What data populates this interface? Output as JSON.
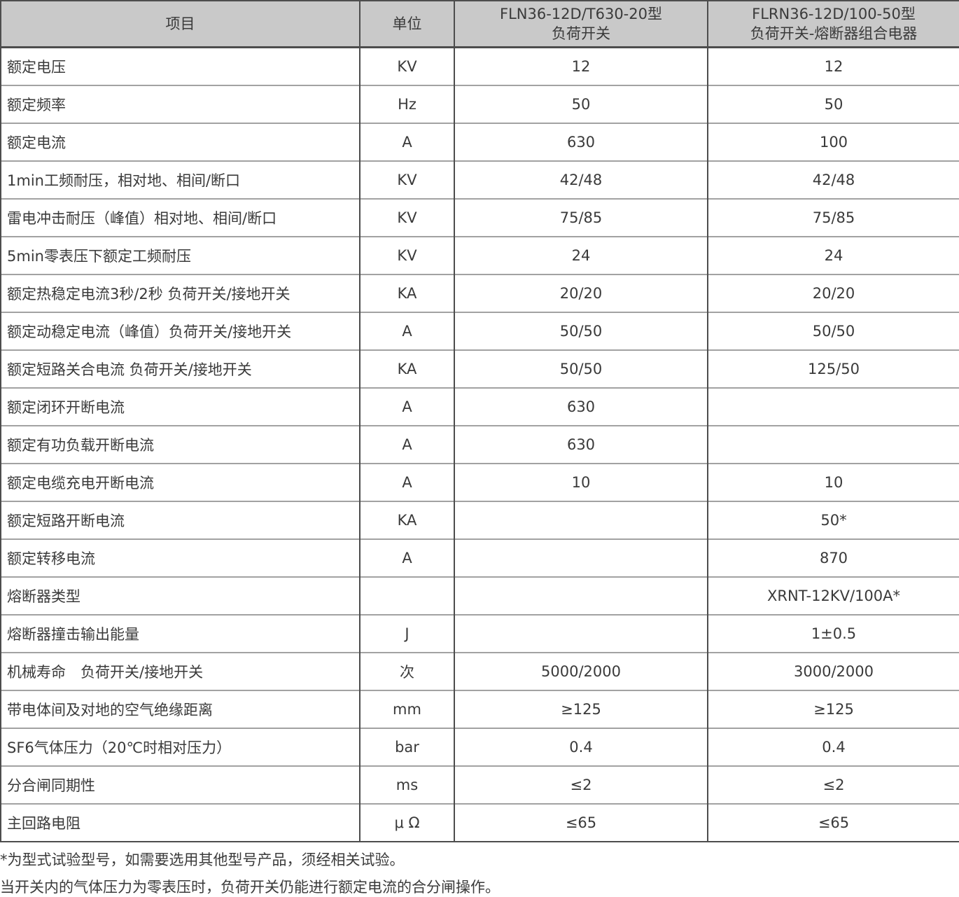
{
  "table": {
    "header": {
      "col_item": "项目",
      "col_unit": "单位",
      "col_a_line1": "FLN36-12D/T630-20型",
      "col_a_line2": "负荷开关",
      "col_b_line1": "FLRN36-12D/100-50型",
      "col_b_line2": "负荷开关-熔断器组合电器"
    },
    "rows": [
      {
        "item": "额定电压",
        "unit": "KV",
        "a": "12",
        "b": "12"
      },
      {
        "item": "额定频率",
        "unit": "Hz",
        "a": "50",
        "b": "50"
      },
      {
        "item": "额定电流",
        "unit": "A",
        "a": "630",
        "b": "100"
      },
      {
        "item": "1min工频耐压，相对地、相间/断口",
        "unit": "KV",
        "a": "42/48",
        "b": "42/48"
      },
      {
        "item": "雷电冲击耐压（峰值）相对地、相间/断口",
        "unit": "KV",
        "a": "75/85",
        "b": "75/85"
      },
      {
        "item": "5min零表压下额定工频耐压",
        "unit": "KV",
        "a": "24",
        "b": "24"
      },
      {
        "item": "额定热稳定电流3秒/2秒 负荷开关/接地开关",
        "unit": "KA",
        "a": "20/20",
        "b": "20/20"
      },
      {
        "item": "额定动稳定电流（峰值）负荷开关/接地开关",
        "unit": "A",
        "a": "50/50",
        "b": "50/50"
      },
      {
        "item": "额定短路关合电流 负荷开关/接地开关",
        "unit": "KA",
        "a": "50/50",
        "b": "125/50"
      },
      {
        "item": "额定闭环开断电流",
        "unit": "A",
        "a": "630",
        "b": ""
      },
      {
        "item": "额定有功负载开断电流",
        "unit": "A",
        "a": "630",
        "b": ""
      },
      {
        "item": "额定电缆充电开断电流",
        "unit": "A",
        "a": "10",
        "b": "10"
      },
      {
        "item": "额定短路开断电流",
        "unit": "KA",
        "a": "",
        "b": "50*"
      },
      {
        "item": "额定转移电流",
        "unit": "A",
        "a": "",
        "b": "870"
      },
      {
        "item": "熔断器类型",
        "unit": "",
        "a": "",
        "b": "XRNT-12KV/100A*"
      },
      {
        "item": "熔断器撞击输出能量",
        "unit": "J",
        "a": "",
        "b": "1±0.5"
      },
      {
        "item": "机械寿命　负荷开关/接地开关",
        "unit": "次",
        "a": "5000/2000",
        "b": "3000/2000"
      },
      {
        "item": "带电体间及对地的空气绝缘距离",
        "unit": "mm",
        "a": "≥125",
        "b": "≥125"
      },
      {
        "item": "SF6气体压力（20℃时相对压力）",
        "unit": "bar",
        "a": "0.4",
        "b": "0.4"
      },
      {
        "item": "分合闸同期性",
        "unit": "ms",
        "a": "≤2",
        "b": "≤2"
      },
      {
        "item": "主回路电阻",
        "unit": "μ Ω",
        "a": "≤65",
        "b": "≤65"
      }
    ]
  },
  "footnotes": [
    "*为型式试验型号，如需要选用其他型号产品，须经相关试验。",
    "当开关内的气体压力为零表压时，负荷开关仍能进行额定电流的合分闸操作。"
  ],
  "colors": {
    "header_bg": "#c9c9c9",
    "border_dark": "#4d4d4d",
    "border_light": "#a2a2a2",
    "text": "#3a3a3a"
  }
}
